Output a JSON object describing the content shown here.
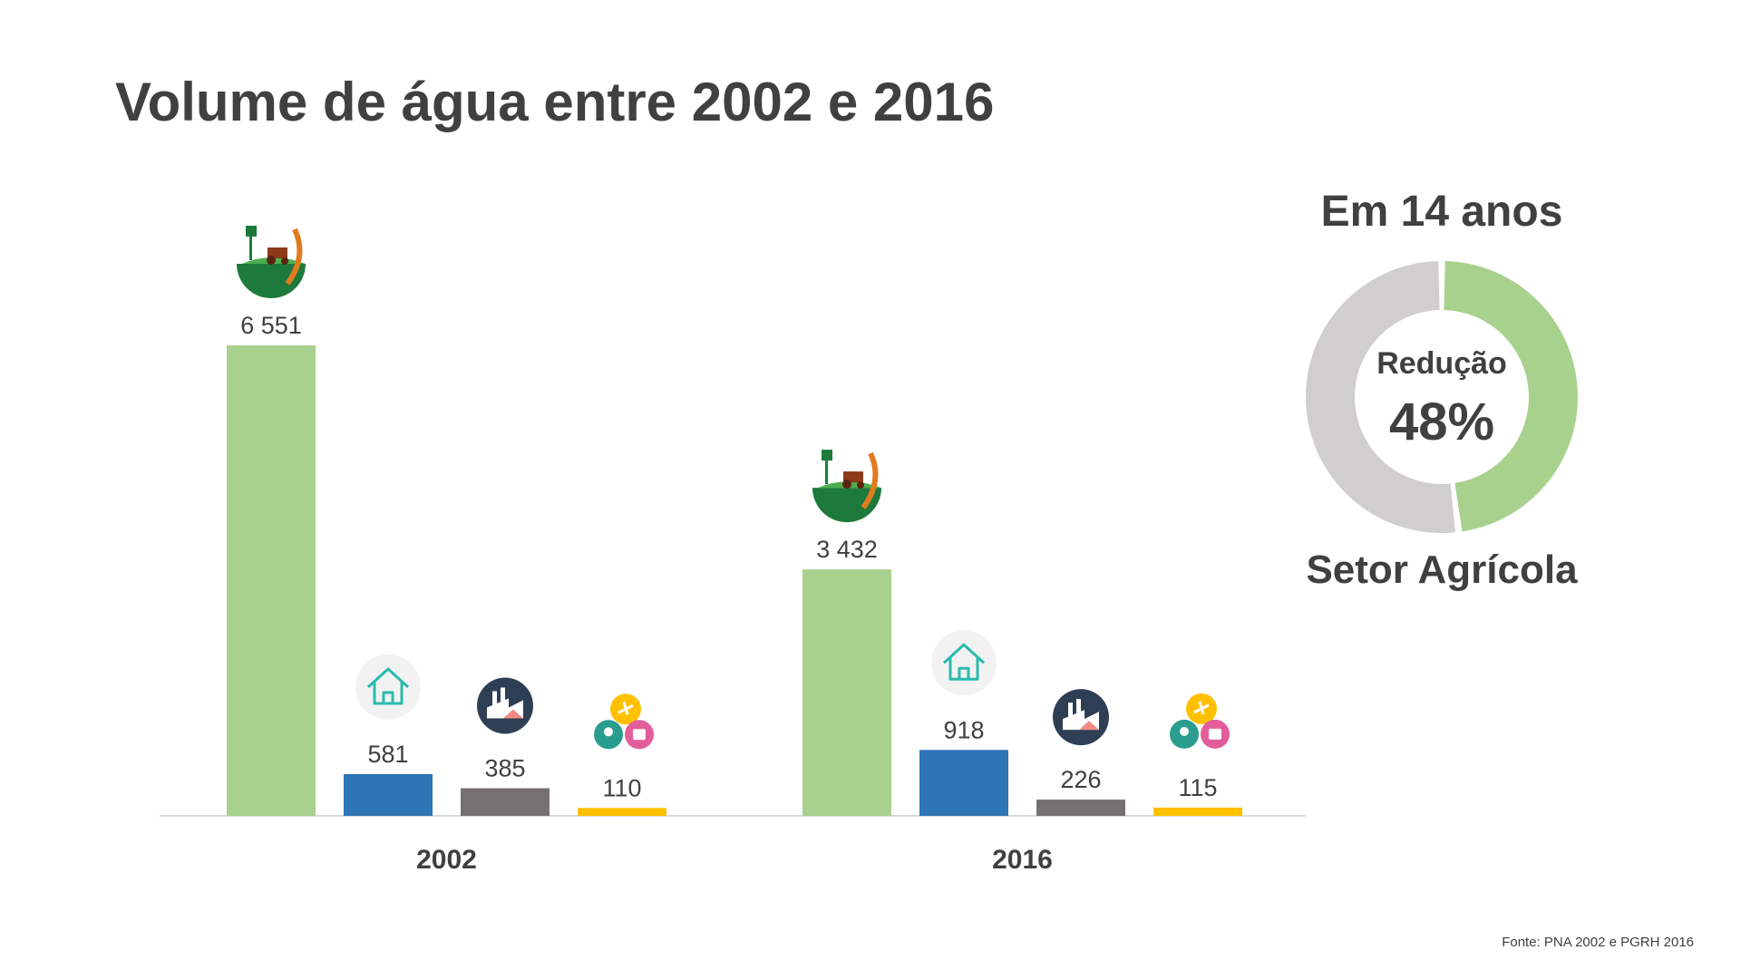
{
  "title": "Volume de água entre 2002 e 2016",
  "colors": {
    "agricola": "#a9d18e",
    "domestico": "#2e75b6",
    "industrial": "#767171",
    "turismo": "#ffc000",
    "donut_remaining": "#d0cece",
    "text": "#404040"
  },
  "chart_data": [
    {
      "type": "bar",
      "categories": [
        "2002",
        "2016"
      ],
      "series": [
        {
          "values": [
            6551,
            3432
          ],
          "labels": [
            "6 551",
            "3 432"
          ],
          "icon": "agriculture-icon"
        },
        {
          "values": [
            581,
            918
          ],
          "labels": [
            "581",
            "918"
          ],
          "icon": "house-icon"
        },
        {
          "values": [
            385,
            226
          ],
          "labels": [
            "385",
            "226"
          ],
          "icon": "factory-icon"
        },
        {
          "values": [
            110,
            115
          ],
          "labels": [
            "110",
            "115"
          ],
          "icon": "tourism-icon"
        }
      ],
      "ylim": [
        0,
        6551
      ],
      "grid": false,
      "legend": "none"
    },
    {
      "type": "pie",
      "title": "Em 14 anos",
      "inner_label": "Redução",
      "value_label": "48%",
      "values": [
        48,
        52
      ],
      "subtitle": "Setor Agrícola"
    }
  ],
  "source": "Fonte: PNA 2002 e PGRH 2016"
}
